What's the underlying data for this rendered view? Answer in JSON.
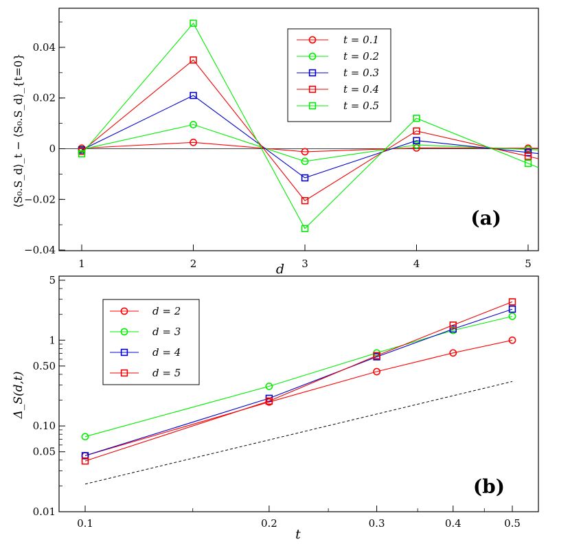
{
  "chart_data": [
    {
      "type": "line",
      "panel_label": "(a)",
      "xlabel": "d",
      "ylabel": "⟨S₀.S_d⟩_t − ⟨S₀.S_d⟩_{t=0}",
      "x": [
        1,
        2,
        3,
        4,
        5
      ],
      "xlim": [
        0.85,
        5.1
      ],
      "ylim": [
        -0.04,
        0.055
      ],
      "xticks": [
        1,
        2,
        3,
        4,
        5
      ],
      "xtick_labels": [
        "1",
        "2",
        "3",
        "4",
        "5"
      ],
      "yticks": [
        -0.04,
        -0.02,
        0,
        0.02,
        0.04
      ],
      "ytick_labels": [
        "−0.04",
        "−0.02",
        "0",
        "0.02",
        "0.04"
      ],
      "zero_line": true,
      "legend_position": "top-right",
      "series": [
        {
          "name": "t = 0.1",
          "color": "#ff0000",
          "marker": "circle",
          "values": [
            0.0002,
            0.0025,
            -0.0012,
            0.0003,
            0.0002
          ]
        },
        {
          "name": "t = 0.2",
          "color": "#00ee00",
          "marker": "circle",
          "values": [
            -0.0003,
            0.0095,
            -0.005,
            0.0015,
            -0.0003
          ]
        },
        {
          "name": "t = 0.3",
          "color": "#0000cc",
          "marker": "square",
          "values": [
            -0.0005,
            0.021,
            -0.0115,
            0.0032,
            -0.0015
          ]
        },
        {
          "name": "t = 0.4",
          "color": "#ee0000",
          "marker": "square",
          "values": [
            -0.001,
            0.035,
            -0.0205,
            0.007,
            -0.003
          ]
        },
        {
          "name": "t = 0.5",
          "color": "#00ee00",
          "marker": "square",
          "values": [
            -0.002,
            0.0495,
            -0.0315,
            0.012,
            -0.0058
          ]
        }
      ]
    },
    {
      "type": "line",
      "panel_label": "(b)",
      "xlabel": "t",
      "ylabel": "Δ_S(d,t)",
      "x_scale": "log",
      "y_scale": "log",
      "x": [
        0.1,
        0.2,
        0.3,
        0.4,
        0.5
      ],
      "xlim": [
        0.085,
        0.55
      ],
      "ylim": [
        0.01,
        5
      ],
      "xticks": [
        0.1,
        0.2,
        0.3,
        0.4,
        0.5
      ],
      "xtick_labels": [
        "0.1",
        "0.2",
        "0.3",
        "0.4",
        "0.5"
      ],
      "yticks": [
        0.01,
        0.05,
        0.1,
        0.5,
        1,
        5
      ],
      "ytick_labels": [
        "0.01",
        "0.05",
        "0.10",
        "0.50",
        "1",
        "5"
      ],
      "legend_position": "top-left",
      "reference_line": {
        "style": "dashed",
        "x": [
          0.1,
          0.5
        ],
        "y": [
          0.021,
          0.33
        ]
      },
      "series": [
        {
          "name": "d = 2",
          "color": "#ff0000",
          "marker": "circle",
          "values": [
            0.045,
            0.19,
            0.43,
            0.71,
            1.0
          ]
        },
        {
          "name": "d = 3",
          "color": "#00ee00",
          "marker": "circle",
          "values": [
            0.075,
            0.29,
            0.71,
            1.3,
            1.9
          ]
        },
        {
          "name": "d = 4",
          "color": "#0000cc",
          "marker": "square",
          "values": [
            0.045,
            0.21,
            0.64,
            1.35,
            2.3
          ]
        },
        {
          "name": "d = 5",
          "color": "#ee0000",
          "marker": "square",
          "values": [
            0.039,
            0.195,
            0.66,
            1.5,
            2.8
          ]
        }
      ]
    }
  ]
}
